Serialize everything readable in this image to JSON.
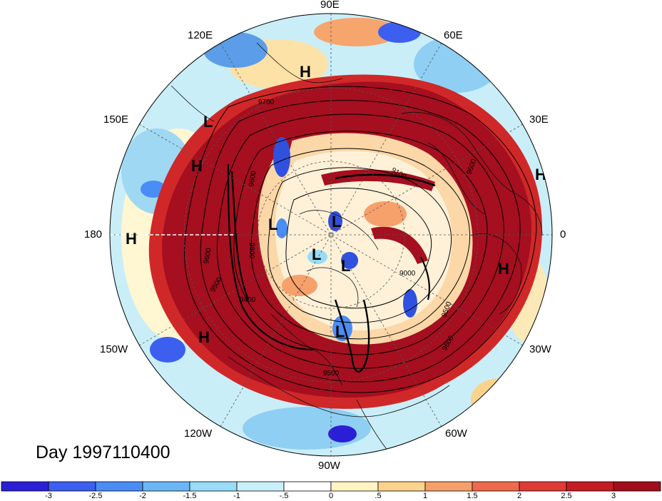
{
  "longitude_labels": {
    "lon_90e": "90E",
    "lon_60e": "60E",
    "lon_120e": "120E",
    "lon_150e": "150E",
    "lon_30e": "30E",
    "lon_180": "180",
    "lon_0": "0",
    "lon_150w": "150W",
    "lon_30w": "30W",
    "lon_120w": "120W",
    "lon_60w": "60W",
    "lon_90w": "90W"
  },
  "date_label": "Day 1997110400",
  "pressure_centers": {
    "high_1": "H",
    "high_2": "H",
    "high_3": "H",
    "high_4": "H",
    "high_5": "H",
    "high_6": "H",
    "low_1": "L",
    "low_2": "L",
    "low_3": "L",
    "low_4": "L",
    "low_5": "L",
    "low_6": "L"
  },
  "contour_labels": {
    "c_9700": "9700",
    "c_9600_a": "9600",
    "c_9100": "9100",
    "c_9600_b": "9600",
    "c_9800": "9800",
    "c_9600_c": "9600",
    "c_9500_a": "9500",
    "c_9400": "9400",
    "c_9000": "9000",
    "c_9500_b": "9500",
    "c_9600_d": "9600",
    "c_9500_c": "9500"
  },
  "colorbar": {
    "colors": [
      "#2b1fd6",
      "#3c5ff0",
      "#4a8df5",
      "#6db6f5",
      "#98dcf7",
      "#c9f0fa",
      "#ffffff",
      "#fff3c4",
      "#fcd38c",
      "#f6a06b",
      "#ef6a4d",
      "#e03a35",
      "#c51c24",
      "#a10d1c"
    ],
    "tick_labels": [
      "-3",
      "-2.5",
      "-2",
      "-1.5",
      "-1",
      "-.5",
      "0",
      ".5",
      "1",
      "1.5",
      "2",
      "2.5",
      "3"
    ]
  },
  "colors": {
    "strong_positive": "#a50f1f",
    "strong_negative": "#3050e0",
    "land_outline": "#111111"
  }
}
